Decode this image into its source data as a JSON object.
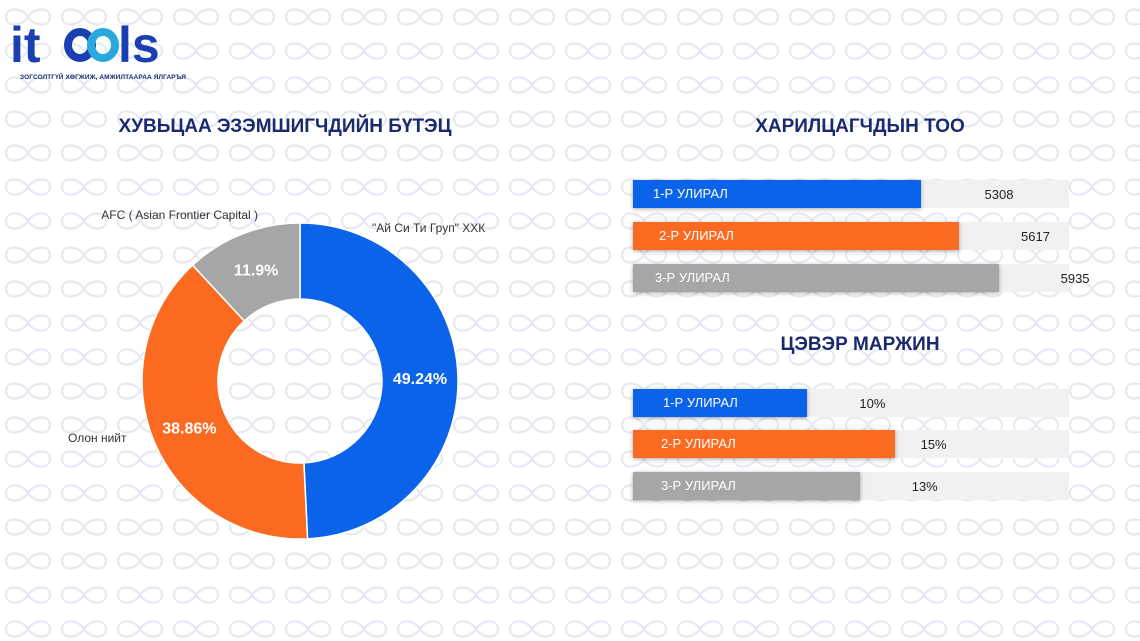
{
  "logo": {
    "text_i": "it",
    "text_ls": "ls",
    "tagline": "ЗОГСОЛТГҮЙ ХӨГЖИЖ, АМЖИЛТААРАА ЯЛГАРЪЯ",
    "colors": {
      "blue": "#1b3fb0",
      "cyan": "#29a8e0"
    }
  },
  "colors": {
    "blue": "#0a63e8",
    "orange": "#fa6a21",
    "gray": "#a6a6a6",
    "title": "#1a2a6c",
    "track": "#f1f1f1"
  },
  "chart_data": [
    {
      "type": "pie",
      "title": "ХУВЬЦАА ЭЗЭМШИГЧДИЙН БҮТЭЦ",
      "donut": true,
      "slices": [
        {
          "name": "\"Ай Си Ти Груп\" ХХК",
          "value": 49.24,
          "label": "49.24%",
          "color": "#0a63e8"
        },
        {
          "name": "Олон нийт",
          "value": 38.86,
          "label": "38.86%",
          "color": "#fa6a21"
        },
        {
          "name": "AFC ( Asian Frontier Capital )",
          "value": 11.9,
          "label": "11.9%",
          "color": "#a6a6a6"
        }
      ]
    },
    {
      "type": "bar",
      "orientation": "horizontal",
      "title": "ХАРИЛЦАГЧДЫН ТОО",
      "categories": [
        "1-Р УЛИРАЛ",
        "2-Р УЛИРАЛ",
        "3-Р УЛИРАЛ"
      ],
      "values": [
        5308,
        5617,
        5935
      ],
      "value_labels": [
        "5308",
        "5617",
        "5935"
      ],
      "colors": [
        "#0a63e8",
        "#fa6a21",
        "#a6a6a6"
      ],
      "xlim": [
        3000,
        6500
      ]
    },
    {
      "type": "bar",
      "orientation": "horizontal",
      "title": "ЦЭВЭР МАРЖИН",
      "categories": [
        "1-Р УЛИРАЛ",
        "2-Р УЛИРАЛ",
        "3-Р УЛИРАЛ"
      ],
      "values": [
        10,
        15,
        13
      ],
      "value_labels": [
        "10%",
        "15%",
        "13%"
      ],
      "colors": [
        "#0a63e8",
        "#fa6a21",
        "#a6a6a6"
      ],
      "xlim": [
        0,
        25
      ]
    }
  ]
}
